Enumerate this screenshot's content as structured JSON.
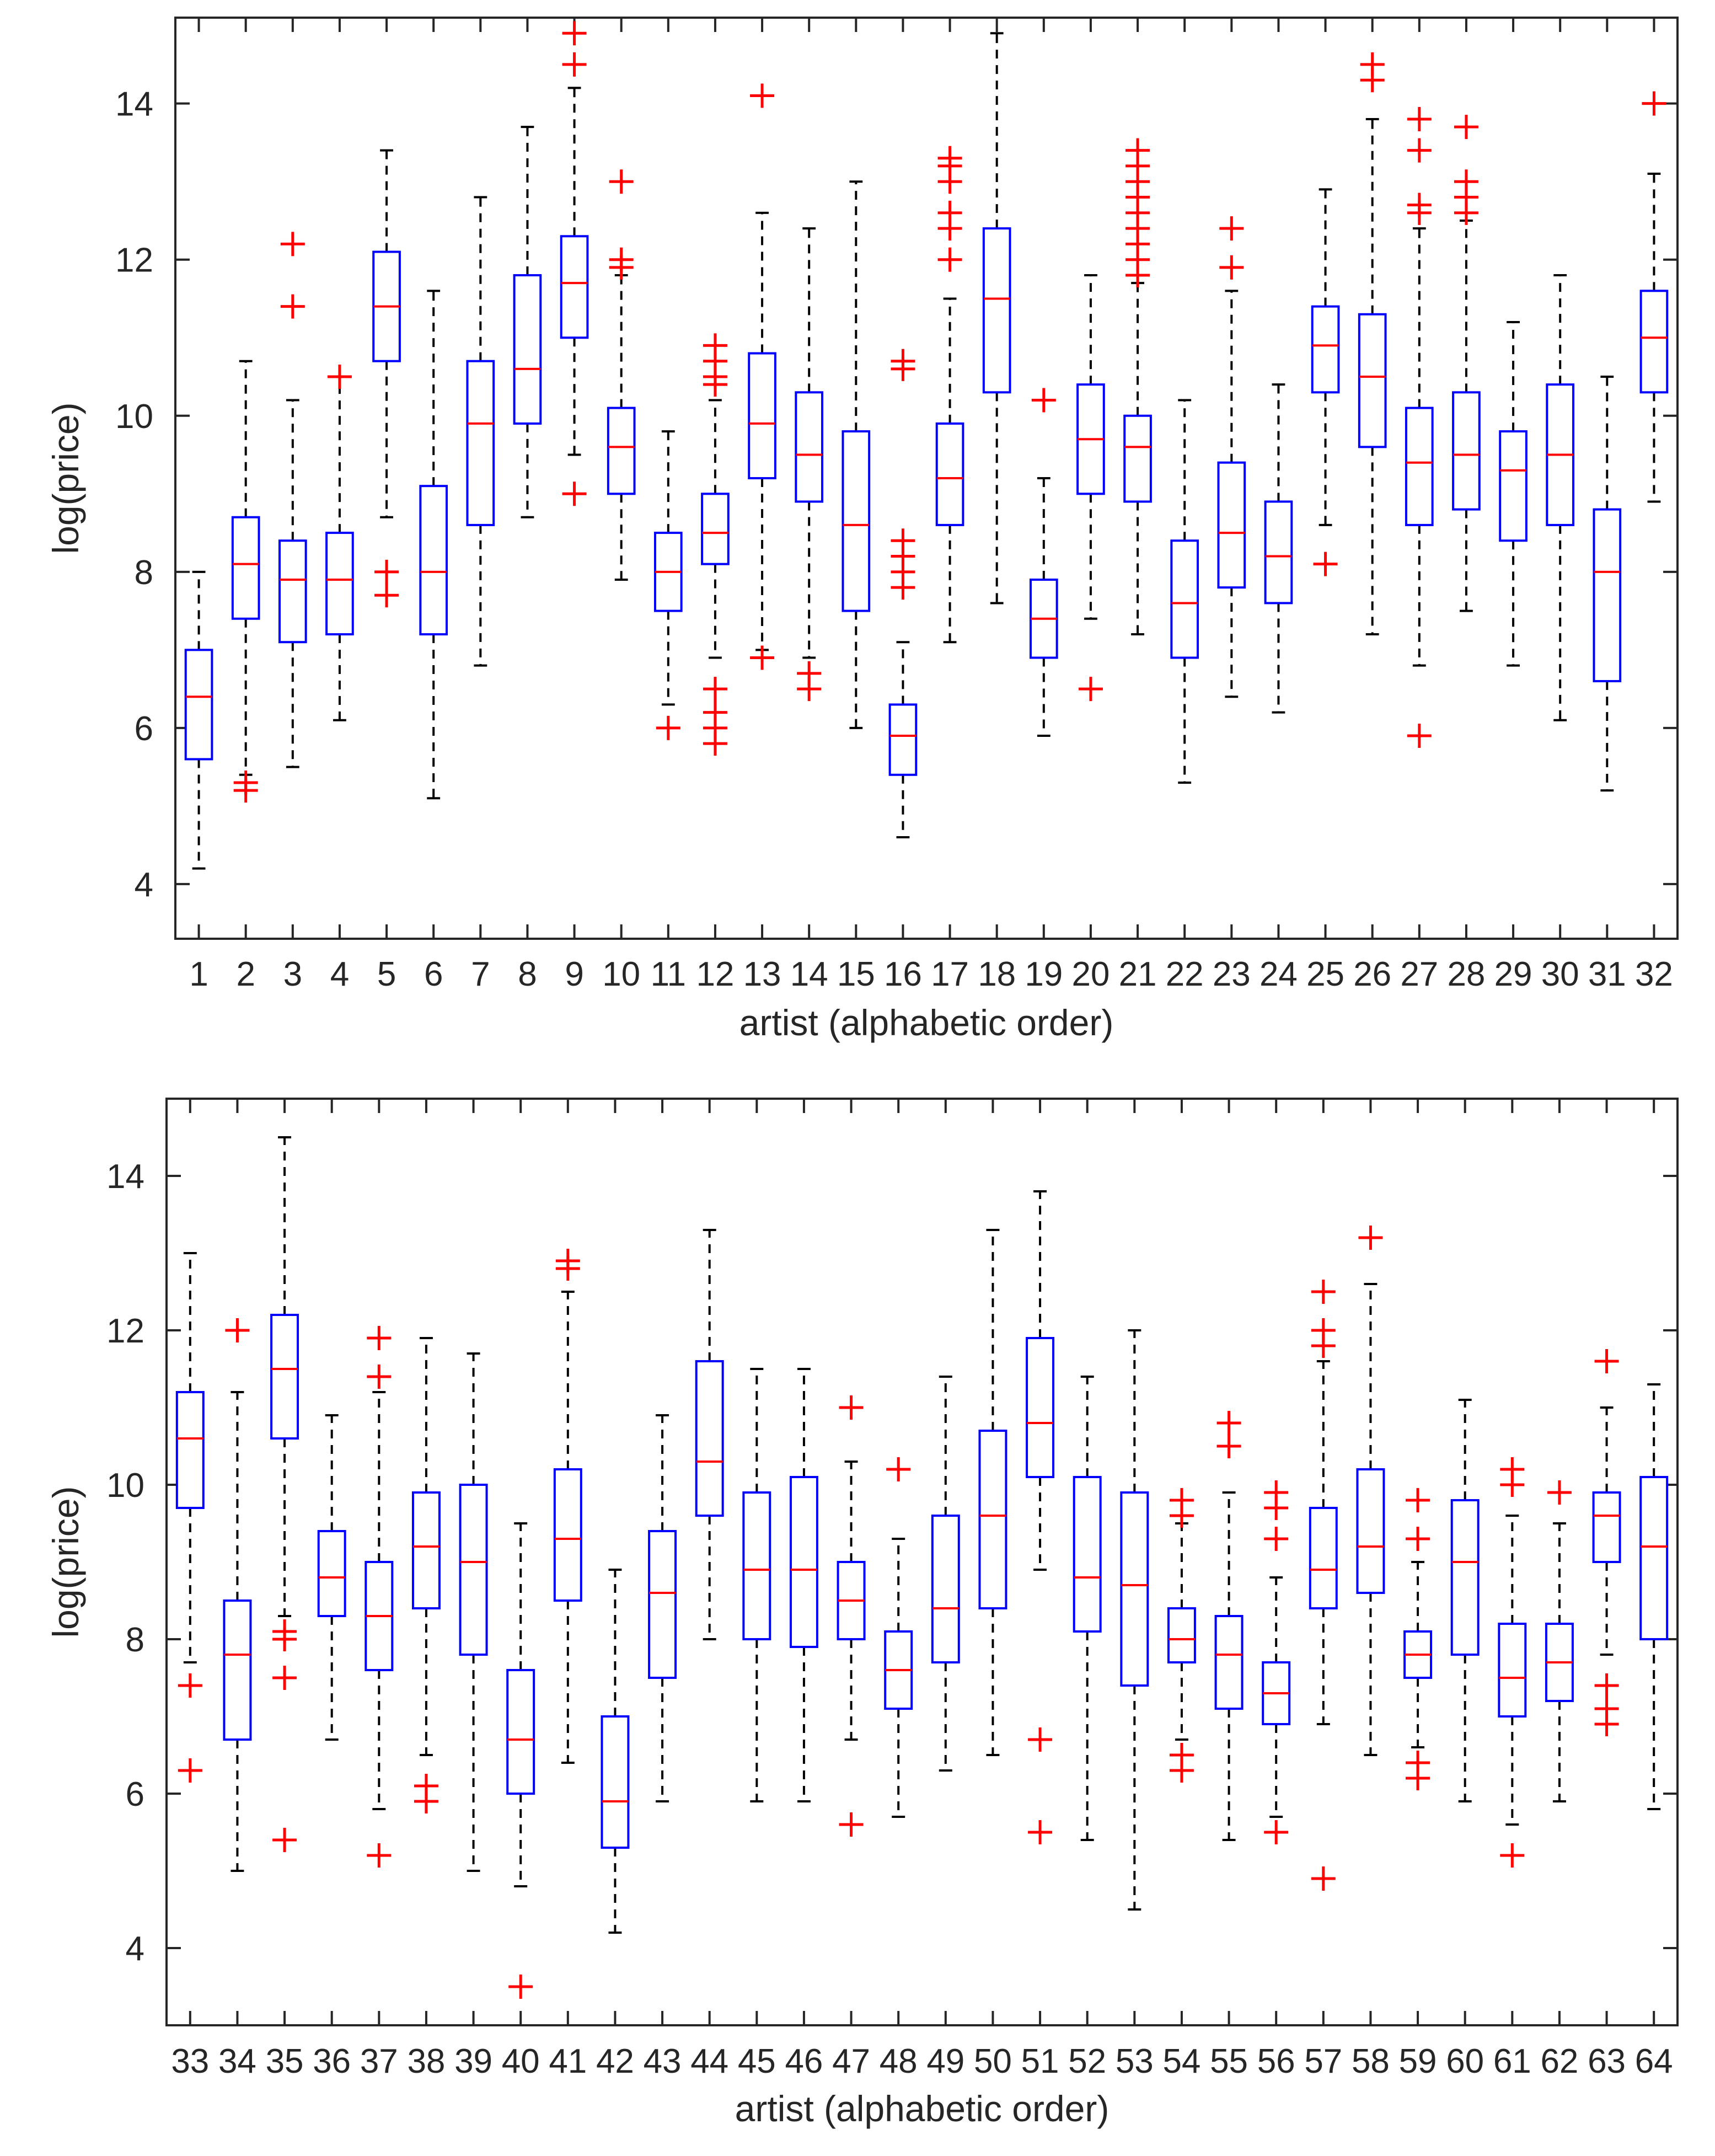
{
  "chart_data": [
    {
      "type": "boxplot",
      "xlabel": "artist (alphabetic order)",
      "ylabel": "log(price)",
      "ylim": [
        3.3,
        15.1
      ],
      "yticks": [
        4,
        6,
        8,
        10,
        12,
        14
      ],
      "categories": [
        "1",
        "2",
        "3",
        "4",
        "5",
        "6",
        "7",
        "8",
        "9",
        "10",
        "11",
        "12",
        "13",
        "14",
        "15",
        "16",
        "17",
        "18",
        "19",
        "20",
        "21",
        "22",
        "23",
        "24",
        "25",
        "26",
        "27",
        "28",
        "29",
        "30",
        "31",
        "32"
      ],
      "boxes": [
        {
          "min": 4.2,
          "q1": 5.6,
          "median": 6.4,
          "q3": 7.0,
          "max": 8.0,
          "outliers": []
        },
        {
          "min": 5.4,
          "q1": 7.4,
          "median": 8.1,
          "q3": 8.7,
          "max": 10.7,
          "outliers": [
            5.2,
            5.3
          ]
        },
        {
          "min": 5.5,
          "q1": 7.1,
          "median": 7.9,
          "q3": 8.4,
          "max": 10.2,
          "outliers": [
            11.4,
            12.2
          ]
        },
        {
          "min": 6.1,
          "q1": 7.2,
          "median": 7.9,
          "q3": 8.5,
          "max": 10.5,
          "outliers": [
            10.5
          ]
        },
        {
          "min": 8.7,
          "q1": 10.7,
          "median": 11.4,
          "q3": 12.1,
          "max": 13.4,
          "outliers": [
            7.7,
            8.0
          ]
        },
        {
          "min": 5.1,
          "q1": 7.2,
          "median": 8.0,
          "q3": 9.1,
          "max": 11.6,
          "outliers": []
        },
        {
          "min": 6.8,
          "q1": 8.6,
          "median": 9.9,
          "q3": 10.7,
          "max": 12.8,
          "outliers": []
        },
        {
          "min": 8.7,
          "q1": 9.9,
          "median": 10.6,
          "q3": 11.8,
          "max": 13.7,
          "outliers": []
        },
        {
          "min": 9.5,
          "q1": 11.0,
          "median": 11.7,
          "q3": 12.3,
          "max": 14.2,
          "outliers": [
            9.0,
            14.5,
            14.9
          ]
        },
        {
          "min": 7.9,
          "q1": 9.0,
          "median": 9.6,
          "q3": 10.1,
          "max": 11.8,
          "outliers": [
            11.9,
            12.0,
            13.0
          ]
        },
        {
          "min": 6.3,
          "q1": 7.5,
          "median": 8.0,
          "q3": 8.5,
          "max": 9.8,
          "outliers": [
            6.0
          ]
        },
        {
          "min": 6.9,
          "q1": 8.1,
          "median": 8.5,
          "q3": 9.0,
          "max": 10.2,
          "outliers": [
            5.8,
            6.0,
            6.2,
            6.5,
            10.4,
            10.5,
            10.7,
            10.9
          ]
        },
        {
          "min": 7.0,
          "q1": 9.2,
          "median": 9.9,
          "q3": 10.8,
          "max": 12.6,
          "outliers": [
            6.9,
            14.1
          ]
        },
        {
          "min": 6.9,
          "q1": 8.9,
          "median": 9.5,
          "q3": 10.3,
          "max": 12.4,
          "outliers": [
            6.5,
            6.7
          ]
        },
        {
          "min": 6.0,
          "q1": 7.5,
          "median": 8.6,
          "q3": 9.8,
          "max": 13.0,
          "outliers": []
        },
        {
          "min": 4.6,
          "q1": 5.4,
          "median": 5.9,
          "q3": 6.3,
          "max": 7.1,
          "outliers": [
            7.8,
            8.0,
            8.2,
            8.4,
            10.6,
            10.7
          ]
        },
        {
          "min": 7.1,
          "q1": 8.6,
          "median": 9.2,
          "q3": 9.9,
          "max": 11.5,
          "outliers": [
            12.0,
            12.4,
            12.6,
            13.0,
            13.2,
            13.3
          ]
        },
        {
          "min": 7.6,
          "q1": 10.3,
          "median": 11.5,
          "q3": 12.4,
          "max": 14.9,
          "outliers": []
        },
        {
          "min": 5.9,
          "q1": 6.9,
          "median": 7.4,
          "q3": 7.9,
          "max": 9.2,
          "outliers": [
            10.2
          ]
        },
        {
          "min": 7.4,
          "q1": 9.0,
          "median": 9.7,
          "q3": 10.4,
          "max": 11.8,
          "outliers": [
            6.5
          ]
        },
        {
          "min": 7.2,
          "q1": 8.9,
          "median": 9.6,
          "q3": 10.0,
          "max": 11.7,
          "outliers": [
            11.8,
            12.0,
            12.2,
            12.4,
            12.6,
            12.8,
            13.0,
            13.2,
            13.4
          ]
        },
        {
          "min": 5.3,
          "q1": 6.9,
          "median": 7.6,
          "q3": 8.4,
          "max": 10.2,
          "outliers": []
        },
        {
          "min": 6.4,
          "q1": 7.8,
          "median": 8.5,
          "q3": 9.4,
          "max": 11.6,
          "outliers": [
            11.9,
            12.4
          ]
        },
        {
          "min": 6.2,
          "q1": 7.6,
          "median": 8.2,
          "q3": 8.9,
          "max": 10.4,
          "outliers": []
        },
        {
          "min": 8.6,
          "q1": 10.3,
          "median": 10.9,
          "q3": 11.4,
          "max": 12.9,
          "outliers": [
            8.1
          ]
        },
        {
          "min": 7.2,
          "q1": 9.6,
          "median": 10.5,
          "q3": 11.3,
          "max": 13.8,
          "outliers": [
            14.3,
            14.5
          ]
        },
        {
          "min": 6.8,
          "q1": 8.6,
          "median": 9.4,
          "q3": 10.1,
          "max": 12.4,
          "outliers": [
            5.9,
            12.6,
            12.7,
            13.4,
            13.8
          ]
        },
        {
          "min": 7.5,
          "q1": 8.8,
          "median": 9.5,
          "q3": 10.3,
          "max": 12.5,
          "outliers": [
            12.6,
            12.8,
            13.0,
            13.7
          ]
        },
        {
          "min": 6.8,
          "q1": 8.4,
          "median": 9.3,
          "q3": 9.8,
          "max": 11.2,
          "outliers": []
        },
        {
          "min": 6.1,
          "q1": 8.6,
          "median": 9.5,
          "q3": 10.4,
          "max": 11.8,
          "outliers": []
        },
        {
          "min": 5.2,
          "q1": 6.6,
          "median": 8.0,
          "q3": 8.8,
          "max": 10.5,
          "outliers": []
        },
        {
          "min": 8.9,
          "q1": 10.3,
          "median": 11.0,
          "q3": 11.6,
          "max": 13.1,
          "outliers": [
            14.0
          ]
        }
      ]
    },
    {
      "type": "boxplot",
      "xlabel": "artist (alphabetic order)",
      "ylabel": "log(price)",
      "ylim": [
        3.0,
        15.0
      ],
      "yticks": [
        4,
        6,
        8,
        10,
        12,
        14
      ],
      "categories": [
        "33",
        "34",
        "35",
        "36",
        "37",
        "38",
        "39",
        "40",
        "41",
        "42",
        "43",
        "44",
        "45",
        "46",
        "47",
        "48",
        "49",
        "50",
        "51",
        "52",
        "53",
        "54",
        "55",
        "56",
        "57",
        "58",
        "59",
        "60",
        "61",
        "62",
        "63",
        "64"
      ],
      "boxes": [
        {
          "min": 7.7,
          "q1": 9.7,
          "median": 10.6,
          "q3": 11.2,
          "max": 13.0,
          "outliers": [
            6.3,
            7.4
          ]
        },
        {
          "min": 5.0,
          "q1": 6.7,
          "median": 7.8,
          "q3": 8.5,
          "max": 11.2,
          "outliers": [
            12.0
          ]
        },
        {
          "min": 8.3,
          "q1": 10.6,
          "median": 11.5,
          "q3": 12.2,
          "max": 14.5,
          "outliers": [
            5.4,
            7.5,
            8.0,
            8.1
          ]
        },
        {
          "min": 6.7,
          "q1": 8.3,
          "median": 8.8,
          "q3": 9.4,
          "max": 10.9,
          "outliers": []
        },
        {
          "min": 5.8,
          "q1": 7.6,
          "median": 8.3,
          "q3": 9.0,
          "max": 11.2,
          "outliers": [
            5.2,
            11.4,
            11.9
          ]
        },
        {
          "min": 6.5,
          "q1": 8.4,
          "median": 9.2,
          "q3": 9.9,
          "max": 11.9,
          "outliers": [
            5.9,
            6.1
          ]
        },
        {
          "min": 5.0,
          "q1": 7.8,
          "median": 9.0,
          "q3": 10.0,
          "max": 11.7,
          "outliers": []
        },
        {
          "min": 4.8,
          "q1": 6.0,
          "median": 6.7,
          "q3": 7.6,
          "max": 9.5,
          "outliers": [
            3.5
          ]
        },
        {
          "min": 6.4,
          "q1": 8.5,
          "median": 9.3,
          "q3": 10.2,
          "max": 12.5,
          "outliers": [
            12.8,
            12.9
          ]
        },
        {
          "min": 4.2,
          "q1": 5.3,
          "median": 5.9,
          "q3": 7.0,
          "max": 8.9,
          "outliers": []
        },
        {
          "min": 5.9,
          "q1": 7.5,
          "median": 8.6,
          "q3": 9.4,
          "max": 10.9,
          "outliers": []
        },
        {
          "min": 8.0,
          "q1": 9.6,
          "median": 10.3,
          "q3": 11.6,
          "max": 13.3,
          "outliers": []
        },
        {
          "min": 5.9,
          "q1": 8.0,
          "median": 8.9,
          "q3": 9.9,
          "max": 11.5,
          "outliers": []
        },
        {
          "min": 5.9,
          "q1": 7.9,
          "median": 8.9,
          "q3": 10.1,
          "max": 11.5,
          "outliers": []
        },
        {
          "min": 6.7,
          "q1": 8.0,
          "median": 8.5,
          "q3": 9.0,
          "max": 10.3,
          "outliers": [
            5.6,
            11.0
          ]
        },
        {
          "min": 5.7,
          "q1": 7.1,
          "median": 7.6,
          "q3": 8.1,
          "max": 9.3,
          "outliers": [
            10.2
          ]
        },
        {
          "min": 6.3,
          "q1": 7.7,
          "median": 8.4,
          "q3": 9.6,
          "max": 11.4,
          "outliers": []
        },
        {
          "min": 6.5,
          "q1": 8.4,
          "median": 9.6,
          "q3": 10.7,
          "max": 13.3,
          "outliers": []
        },
        {
          "min": 8.9,
          "q1": 10.1,
          "median": 10.8,
          "q3": 11.9,
          "max": 13.8,
          "outliers": [
            5.5,
            6.7
          ]
        },
        {
          "min": 5.4,
          "q1": 8.1,
          "median": 8.8,
          "q3": 10.1,
          "max": 11.4,
          "outliers": []
        },
        {
          "min": 4.5,
          "q1": 7.4,
          "median": 8.7,
          "q3": 9.9,
          "max": 12.0,
          "outliers": []
        },
        {
          "min": 6.7,
          "q1": 7.7,
          "median": 8.0,
          "q3": 8.4,
          "max": 9.5,
          "outliers": [
            6.3,
            6.5,
            9.6,
            9.8
          ]
        },
        {
          "min": 5.4,
          "q1": 7.1,
          "median": 7.8,
          "q3": 8.3,
          "max": 9.9,
          "outliers": [
            10.5,
            10.8
          ]
        },
        {
          "min": 5.7,
          "q1": 6.9,
          "median": 7.3,
          "q3": 7.7,
          "max": 8.8,
          "outliers": [
            5.5,
            9.3,
            9.7,
            9.9
          ]
        },
        {
          "min": 6.9,
          "q1": 8.4,
          "median": 8.9,
          "q3": 9.7,
          "max": 11.6,
          "outliers": [
            4.9,
            11.8,
            12.0,
            12.5
          ]
        },
        {
          "min": 6.5,
          "q1": 8.6,
          "median": 9.2,
          "q3": 10.2,
          "max": 12.6,
          "outliers": [
            13.2
          ]
        },
        {
          "min": 6.6,
          "q1": 7.5,
          "median": 7.8,
          "q3": 8.1,
          "max": 9.0,
          "outliers": [
            6.2,
            6.4,
            9.3,
            9.8
          ]
        },
        {
          "min": 5.9,
          "q1": 7.8,
          "median": 9.0,
          "q3": 9.8,
          "max": 11.1,
          "outliers": []
        },
        {
          "min": 5.6,
          "q1": 7.0,
          "median": 7.5,
          "q3": 8.2,
          "max": 9.6,
          "outliers": [
            5.2,
            10.0,
            10.2
          ]
        },
        {
          "min": 5.9,
          "q1": 7.2,
          "median": 7.7,
          "q3": 8.2,
          "max": 9.5,
          "outliers": [
            9.9
          ]
        },
        {
          "min": 7.8,
          "q1": 9.0,
          "median": 9.6,
          "q3": 9.9,
          "max": 11.0,
          "outliers": [
            6.9,
            7.1,
            7.4,
            11.6
          ]
        },
        {
          "min": 5.8,
          "q1": 8.0,
          "median": 9.2,
          "q3": 10.1,
          "max": 11.3,
          "outliers": []
        }
      ]
    }
  ]
}
